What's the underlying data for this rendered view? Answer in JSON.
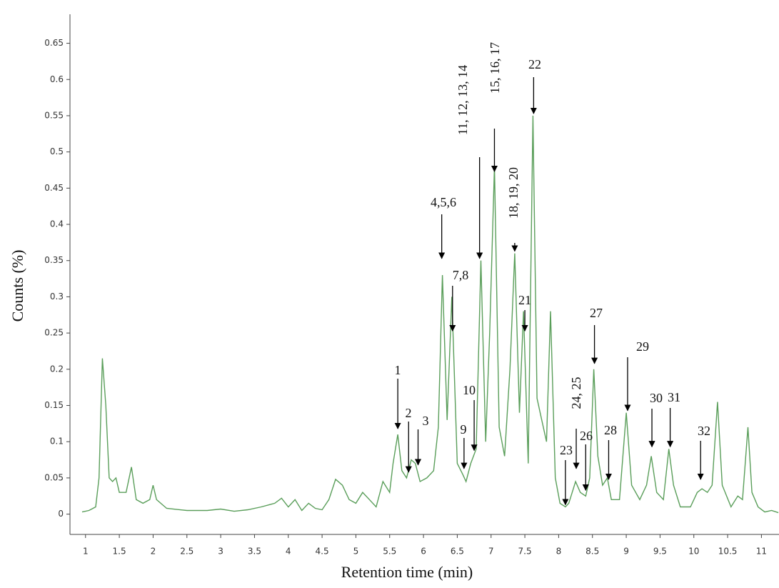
{
  "chart_data": {
    "type": "line",
    "y_label": "Counts (%)",
    "x_label": "Retention time (min)",
    "color": "#5a9e5a",
    "xlim": [
      0.77,
      11.26
    ],
    "ylim": [
      -0.028,
      0.69
    ],
    "xticks": [
      1,
      1.5,
      2,
      2.5,
      3,
      3.5,
      4,
      4.5,
      5,
      5.5,
      6,
      6.5,
      7,
      7.5,
      8,
      8.5,
      9,
      9.5,
      10,
      10.5,
      11
    ],
    "yticks": [
      0,
      0.05,
      0.1,
      0.15,
      0.2,
      0.25,
      0.3,
      0.35,
      0.4,
      0.45,
      0.5,
      0.55,
      0.6,
      0.65
    ],
    "x": [
      0.95,
      1.05,
      1.15,
      1.2,
      1.25,
      1.3,
      1.35,
      1.4,
      1.45,
      1.5,
      1.6,
      1.68,
      1.75,
      1.85,
      1.95,
      2.0,
      2.05,
      2.2,
      2.5,
      2.8,
      3.0,
      3.2,
      3.4,
      3.6,
      3.8,
      3.9,
      4.0,
      4.1,
      4.2,
      4.3,
      4.4,
      4.5,
      4.6,
      4.7,
      4.8,
      4.9,
      5.0,
      5.1,
      5.2,
      5.3,
      5.4,
      5.5,
      5.55,
      5.62,
      5.68,
      5.75,
      5.82,
      5.88,
      5.95,
      6.05,
      6.15,
      6.22,
      6.28,
      6.35,
      6.42,
      6.5,
      6.58,
      6.63,
      6.7,
      6.78,
      6.85,
      6.92,
      6.98,
      7.05,
      7.12,
      7.2,
      7.28,
      7.35,
      7.42,
      7.48,
      7.55,
      7.62,
      7.68,
      7.75,
      7.82,
      7.88,
      7.95,
      8.02,
      8.1,
      8.15,
      8.25,
      8.32,
      8.4,
      8.46,
      8.52,
      8.58,
      8.65,
      8.72,
      8.78,
      8.9,
      9.0,
      9.08,
      9.2,
      9.3,
      9.37,
      9.45,
      9.55,
      9.63,
      9.7,
      9.8,
      9.95,
      10.05,
      10.12,
      10.2,
      10.27,
      10.35,
      10.42,
      10.55,
      10.65,
      10.72,
      10.8,
      10.86,
      10.95,
      11.05,
      11.15,
      11.25
    ],
    "values": [
      0.003,
      0.005,
      0.01,
      0.05,
      0.215,
      0.15,
      0.05,
      0.045,
      0.05,
      0.03,
      0.03,
      0.065,
      0.02,
      0.015,
      0.02,
      0.04,
      0.02,
      0.008,
      0.005,
      0.005,
      0.007,
      0.004,
      0.006,
      0.01,
      0.015,
      0.022,
      0.01,
      0.02,
      0.005,
      0.015,
      0.008,
      0.006,
      0.02,
      0.048,
      0.04,
      0.02,
      0.015,
      0.03,
      0.02,
      0.01,
      0.045,
      0.03,
      0.07,
      0.11,
      0.06,
      0.05,
      0.075,
      0.07,
      0.045,
      0.05,
      0.06,
      0.12,
      0.33,
      0.13,
      0.3,
      0.07,
      0.055,
      0.045,
      0.07,
      0.09,
      0.35,
      0.1,
      0.25,
      0.48,
      0.12,
      0.08,
      0.2,
      0.36,
      0.14,
      0.28,
      0.07,
      0.55,
      0.16,
      0.13,
      0.1,
      0.28,
      0.05,
      0.015,
      0.01,
      0.015,
      0.045,
      0.03,
      0.025,
      0.05,
      0.2,
      0.08,
      0.04,
      0.05,
      0.02,
      0.02,
      0.14,
      0.04,
      0.02,
      0.04,
      0.08,
      0.03,
      0.02,
      0.09,
      0.04,
      0.01,
      0.01,
      0.03,
      0.035,
      0.03,
      0.04,
      0.155,
      0.04,
      0.01,
      0.025,
      0.02,
      0.12,
      0.03,
      0.01,
      0.003,
      0.005,
      0.002
    ],
    "annotations": [
      {
        "text": "1",
        "x": 5.62,
        "y": 0.115
      },
      {
        "text": "2",
        "x": 5.78,
        "y": 0.055
      },
      {
        "text": "3",
        "x": 5.92,
        "y": 0.065
      },
      {
        "text": "4,5,6",
        "x": 6.27,
        "y": 0.35
      },
      {
        "text": "7,8",
        "x": 6.43,
        "y": 0.25
      },
      {
        "text": "9",
        "x": 6.6,
        "y": 0.06
      },
      {
        "text": "10",
        "x": 6.75,
        "y": 0.085
      },
      {
        "text": "11, 12, 13, 14",
        "x": 6.83,
        "y": 0.35
      },
      {
        "text": "15, 16, 17",
        "x": 7.05,
        "y": 0.47
      },
      {
        "text": "18, 19, 20",
        "x": 7.35,
        "y": 0.36
      },
      {
        "text": "21",
        "x": 7.5,
        "y": 0.25
      },
      {
        "text": "22",
        "x": 7.63,
        "y": 0.55
      },
      {
        "text": "23",
        "x": 8.1,
        "y": 0.01
      },
      {
        "text": "24, 25",
        "x": 8.26,
        "y": 0.06
      },
      {
        "text": "26",
        "x": 8.4,
        "y": 0.03
      },
      {
        "text": "27",
        "x": 8.53,
        "y": 0.205
      },
      {
        "text": "28",
        "x": 8.74,
        "y": 0.045
      },
      {
        "text": "29",
        "x": 9.02,
        "y": 0.14
      },
      {
        "text": "30",
        "x": 9.38,
        "y": 0.09
      },
      {
        "text": "31",
        "x": 9.65,
        "y": 0.09
      },
      {
        "text": "32",
        "x": 10.1,
        "y": 0.045
      }
    ]
  }
}
